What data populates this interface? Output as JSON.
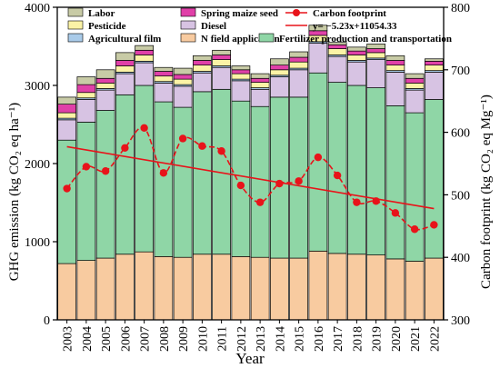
{
  "chart_data": {
    "type": "bar",
    "xlabel": "Year",
    "ylabel": "GHG emission (kg CO₂ eq ha⁻¹)",
    "ylabel_right": "Carbon footprint (kg CO₂ eq Mg⁻¹)",
    "ylim": [
      0,
      4000
    ],
    "ylim_right": [
      300,
      800
    ],
    "yticks": [
      0,
      1000,
      2000,
      3000,
      4000
    ],
    "yticks_right": [
      300,
      400,
      500,
      600,
      700,
      800
    ],
    "grid": false,
    "legend_position": "top",
    "categories": [
      "2003",
      "2004",
      "2005",
      "2006",
      "2007",
      "2008",
      "2009",
      "2010",
      "2011",
      "2012",
      "2013",
      "2014",
      "2015",
      "2016",
      "2017",
      "2018",
      "2019",
      "2020",
      "2021",
      "2022"
    ],
    "stack_series": [
      {
        "name": "N field application",
        "color": "#f8cba0",
        "values": [
          720,
          760,
          790,
          840,
          870,
          810,
          800,
          840,
          840,
          810,
          800,
          790,
          790,
          880,
          850,
          840,
          830,
          780,
          750,
          790
        ]
      },
      {
        "name": "Fertilizer production and transportation",
        "color": "#8fd6a6",
        "values": [
          1580,
          1770,
          1890,
          2040,
          2130,
          1980,
          1920,
          2080,
          2110,
          1990,
          1930,
          2060,
          2060,
          2280,
          2190,
          2160,
          2140,
          1960,
          1900,
          2030
        ]
      },
      {
        "name": "Diesel",
        "color": "#d7c3e3",
        "values": [
          260,
          290,
          260,
          270,
          290,
          240,
          270,
          240,
          280,
          260,
          220,
          260,
          350,
          380,
          330,
          300,
          360,
          430,
          290,
          350
        ]
      },
      {
        "name": "Agricultural film",
        "color": "#a9cbe9",
        "values": [
          20,
          20,
          20,
          20,
          20,
          20,
          20,
          20,
          20,
          20,
          20,
          20,
          20,
          20,
          20,
          20,
          20,
          20,
          20,
          20
        ]
      },
      {
        "name": "Pesticide",
        "color": "#fbf3a6",
        "values": [
          70,
          70,
          70,
          80,
          80,
          70,
          70,
          80,
          80,
          70,
          70,
          70,
          80,
          80,
          80,
          70,
          70,
          70,
          70,
          70
        ]
      },
      {
        "name": "Spring maize seed",
        "color": "#e040a8",
        "values": [
          110,
          100,
          60,
          70,
          60,
          60,
          60,
          60,
          60,
          50,
          50,
          60,
          60,
          60,
          50,
          50,
          50,
          60,
          60,
          50
        ]
      },
      {
        "name": "Labor",
        "color": "#c8cba6",
        "values": [
          90,
          100,
          110,
          100,
          60,
          50,
          80,
          60,
          60,
          50,
          60,
          80,
          70,
          70,
          30,
          50,
          60,
          60,
          60,
          30
        ]
      }
    ],
    "line_series": {
      "name": "Carbon footprint",
      "color": "#e8131a",
      "axis": "right",
      "values": [
        510,
        545,
        538,
        575,
        607,
        535,
        590,
        578,
        570,
        515,
        488,
        518,
        522,
        560,
        531,
        488,
        490,
        471,
        445,
        452
      ]
    },
    "trend": {
      "name": "y= −5.23x+11054.33",
      "color": "#e8131a",
      "axis": "right",
      "slope": -5.23,
      "intercept": 11054.33,
      "start_value": 577,
      "end_value": 478
    },
    "legend": [
      {
        "label": "Labor",
        "kind": "box",
        "color": "#c8cba6"
      },
      {
        "label": "Spring maize seed",
        "kind": "box",
        "color": "#e040a8"
      },
      {
        "label": "Carbon footprint",
        "kind": "line-marker",
        "color": "#e8131a"
      },
      {
        "label": "Pesticide",
        "kind": "box",
        "color": "#fbf3a6"
      },
      {
        "label": "Diesel",
        "kind": "box",
        "color": "#d7c3e3"
      },
      {
        "label": "y= −5.23x+11054.33",
        "kind": "line",
        "color": "#e8131a"
      },
      {
        "label": "Agricultural film",
        "kind": "box",
        "color": "#a9cbe9"
      },
      {
        "label": "N field application",
        "kind": "box",
        "color": "#f8cba0"
      },
      {
        "label": "Fertilizer production and transportation",
        "kind": "box",
        "color": "#8fd6a6"
      }
    ]
  }
}
